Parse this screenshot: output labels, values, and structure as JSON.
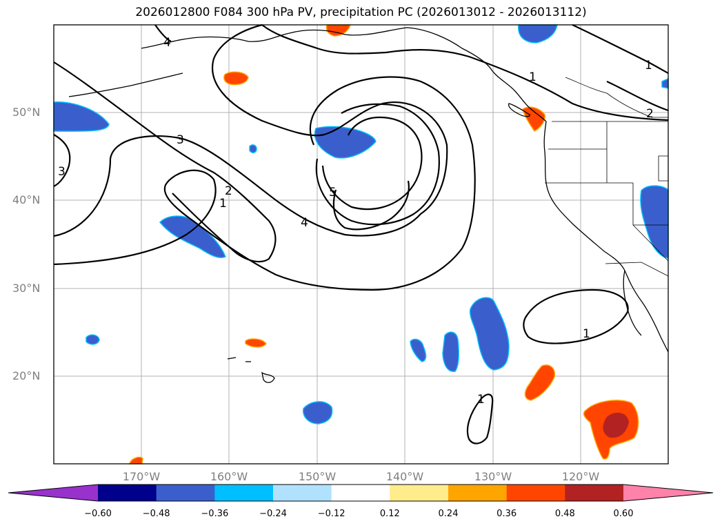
{
  "title": "2026012800 F084 300 hPa PV, precipitation PC (2026013012 - 2026013112)",
  "lat_labels": [
    "50°N",
    "40°N",
    "30°N",
    "20°N"
  ],
  "lon_labels": [
    "170°W",
    "160°W",
    "150°W",
    "140°W",
    "130°W",
    "120°W"
  ],
  "contour_labels": [
    "4",
    "1",
    "3",
    "3",
    "2",
    "1",
    "5",
    "4",
    "1",
    "2",
    "1",
    "1"
  ],
  "colorbar": {
    "ticks": [
      "−0.60",
      "−0.48",
      "−0.36",
      "−0.24",
      "−0.12",
      "0.12",
      "0.24",
      "0.36",
      "0.48",
      "0.60"
    ],
    "colors": [
      "#9932cc",
      "#00008b",
      "#3a5fcd",
      "#00bfff",
      "#b0e2ff",
      "#ffffff",
      "#ffec8b",
      "#ffa500",
      "#ff4500",
      "#b22222",
      "#ff82ab"
    ]
  },
  "colors": {
    "negative": "#3a5fcd",
    "negative_edge": "#00bfff",
    "positive": "#ff4500",
    "positive_edge": "#ffa500",
    "strong_positive": "#b22222",
    "grid": "#b0b0b0"
  }
}
